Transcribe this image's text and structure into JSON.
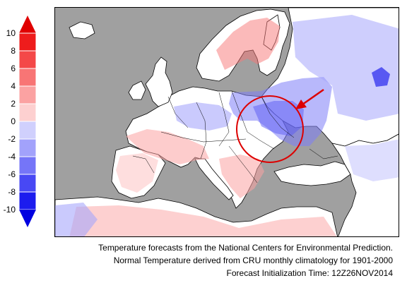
{
  "legend": {
    "ticks": [
      "10",
      "8",
      "6",
      "4",
      "2",
      "0",
      "-2",
      "-4",
      "-6",
      "-8",
      "-10"
    ],
    "warm_colors": [
      "#ee1c1c",
      "#f44848",
      "#f87575",
      "#fba2a2",
      "#fdd0d0"
    ],
    "cool_colors": [
      "#d0d0fd",
      "#a2a2fb",
      "#7575f8",
      "#4848f4",
      "#1c1cee"
    ],
    "top_arrow_color": "#e00000",
    "bottom_arrow_color": "#0000e0"
  },
  "map": {
    "land_color": "#ffffff",
    "water_color": "#a0a0a0",
    "highlight_circle_color": "#dd0000",
    "arrow_color": "#dd0000"
  },
  "caption": {
    "line1": "Temperature forecasts from the National Centers for Environmental Prediction.",
    "line2": "Normal Temperature derived from CRU monthly climatology for 1901-2000",
    "line3": "Forecast Initialization Time: 12Z26NOV2014"
  }
}
